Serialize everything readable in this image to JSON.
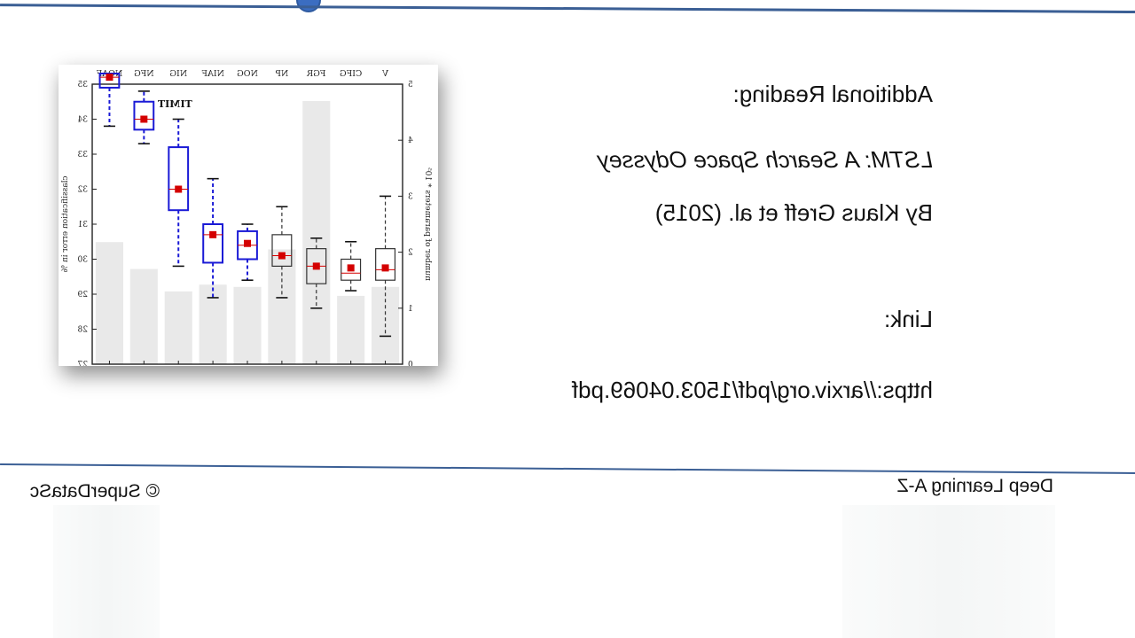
{
  "slide": {
    "heading": "Additional Reading:",
    "paper_title": "LSTM: A Search Space Odyssey",
    "paper_authors": "By Klaus Greff et al. (2015)",
    "link_label": "Link:",
    "paper_url": "https://arxiv.org/pdf/1503.04069.pdf"
  },
  "footer": {
    "course": "Deep Learning A-Z",
    "copyright": "© SuperDataSc"
  },
  "colors": {
    "rule": "#3b5f95",
    "knob": "#3b6dc1",
    "box_highlight": "#1a1ad6",
    "median": "#d40000"
  },
  "chart_data": {
    "type": "box",
    "title": "TIMIT",
    "ylabel_left": "number of parameters * 10⁵",
    "ylabel_right": "classification error in %",
    "categories": [
      "V",
      "CIFG",
      "FGR",
      "NP",
      "NOG",
      "NIAF",
      "NIG",
      "NFG",
      "NOAF"
    ],
    "bars_left_axis": {
      "ylim": [
        0,
        5
      ],
      "ticks": [
        "0",
        "1",
        "2",
        "3",
        "4",
        "5"
      ],
      "values": [
        1.38,
        1.22,
        4.7,
        2.05,
        1.38,
        1.42,
        1.3,
        1.7,
        2.18
      ]
    },
    "boxes_right_axis": {
      "ylim": [
        27,
        35
      ],
      "ticks": [
        "27",
        "28",
        "29",
        "30",
        "31",
        "32",
        "33",
        "34",
        "35"
      ],
      "series": [
        {
          "category": "V",
          "whisker_low": 27.8,
          "q1": 29.4,
          "median": 29.7,
          "q3": 30.3,
          "whisker_high": 31.8,
          "mean": 29.75,
          "highlight": false
        },
        {
          "category": "CIFG",
          "whisker_low": 29.1,
          "q1": 29.4,
          "median": 29.6,
          "q3": 30.0,
          "whisker_high": 30.5,
          "mean": 29.75,
          "highlight": false
        },
        {
          "category": "FGR",
          "whisker_low": 28.6,
          "q1": 29.3,
          "median": 29.8,
          "q3": 30.3,
          "whisker_high": 30.6,
          "mean": 29.8,
          "highlight": false
        },
        {
          "category": "NP",
          "whisker_low": 28.9,
          "q1": 29.8,
          "median": 30.1,
          "q3": 30.7,
          "whisker_high": 31.5,
          "mean": 30.1,
          "highlight": false
        },
        {
          "category": "NOG",
          "whisker_low": 29.4,
          "q1": 30.0,
          "median": 30.4,
          "q3": 30.8,
          "whisker_high": 31.0,
          "mean": 30.45,
          "highlight": true
        },
        {
          "category": "NIAF",
          "whisker_low": 28.9,
          "q1": 29.9,
          "median": 30.7,
          "q3": 31.0,
          "whisker_high": 32.3,
          "mean": 30.7,
          "highlight": true
        },
        {
          "category": "NIG",
          "whisker_low": 29.8,
          "q1": 31.4,
          "median": 32.0,
          "q3": 33.2,
          "whisker_high": 34.0,
          "mean": 32.0,
          "highlight": true
        },
        {
          "category": "NFG",
          "whisker_low": 33.3,
          "q1": 33.7,
          "median": 34.0,
          "q3": 34.5,
          "whisker_high": 34.8,
          "mean": 34.0,
          "highlight": true
        },
        {
          "category": "NOAF",
          "whisker_low": 33.8,
          "q1": 34.9,
          "median": 35.2,
          "q3": 35.5,
          "whisker_high": 35.8,
          "mean": 35.2,
          "highlight": true
        }
      ]
    }
  }
}
